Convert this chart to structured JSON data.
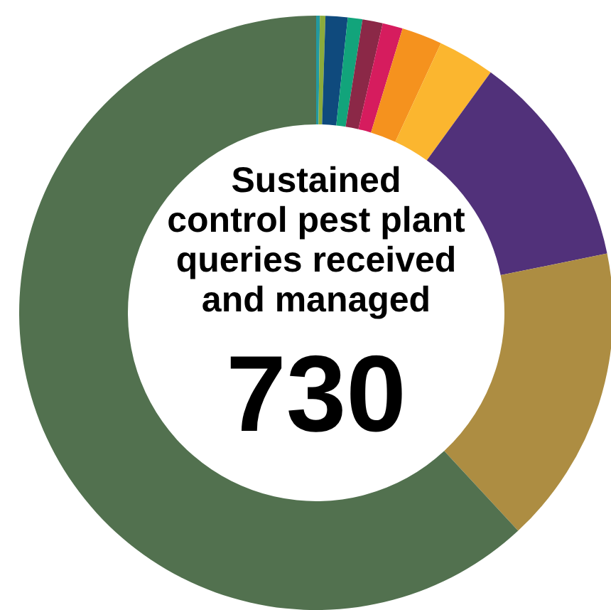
{
  "chart_data": {
    "type": "donut",
    "title": "Sustained control pest plant queries received and managed",
    "annotations": [
      "730"
    ],
    "categories": [
      null,
      null,
      null,
      null,
      null,
      null,
      null,
      null,
      null,
      null,
      null
    ],
    "values": [
      0.2,
      0.3,
      1.2,
      0.8,
      1.1,
      1.1,
      2.2,
      3.1,
      11.8,
      16.3,
      61.9
    ],
    "colors": [
      "#2399a0",
      "#8bab3c",
      "#0f4a7d",
      "#12a47b",
      "#8b2847",
      "#d61c5e",
      "#f5921e",
      "#fbb62f",
      "#51317a",
      "#ad8d42",
      "#52714f"
    ]
  }
}
